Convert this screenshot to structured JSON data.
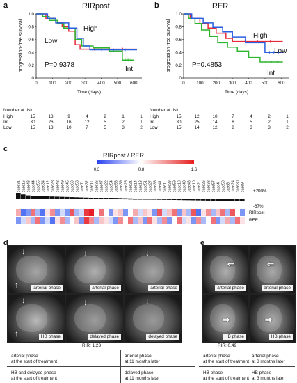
{
  "panels": {
    "a": {
      "label": "a",
      "title": "RIRpost"
    },
    "b": {
      "label": "b",
      "title": "RER"
    },
    "c": {
      "label": "c"
    },
    "d": {
      "label": "d"
    },
    "e": {
      "label": "e"
    }
  },
  "chart_data": [
    {
      "type": "line",
      "panel": "a",
      "title": "RIRpost",
      "xlabel": "Time (days)",
      "ylabel": "progression-free survival",
      "xlim": [
        0,
        650
      ],
      "ylim": [
        0,
        1.0
      ],
      "xticks": [
        "0",
        "100",
        "200",
        "300",
        "400",
        "500",
        "600"
      ],
      "yticks": [
        "0",
        "0.2",
        "0.4",
        "0.6",
        "0.8",
        "1.0"
      ],
      "pvalue": "P=0.9378",
      "series": [
        {
          "name": "High",
          "color": "#e8283a",
          "x": [
            0,
            60,
            60,
            120,
            120,
            160,
            160,
            200,
            200,
            240,
            240,
            270,
            270,
            620
          ],
          "y": [
            1.0,
            1.0,
            0.93,
            0.93,
            0.87,
            0.87,
            0.8,
            0.8,
            0.73,
            0.73,
            0.52,
            0.52,
            0.45,
            0.45
          ]
        },
        {
          "name": "Int",
          "color": "#2db52d",
          "x": [
            0,
            40,
            40,
            80,
            80,
            130,
            130,
            170,
            170,
            240,
            240,
            280,
            280,
            350,
            350,
            450,
            450,
            530,
            530,
            600
          ],
          "y": [
            1.0,
            1.0,
            0.96,
            0.96,
            0.9,
            0.9,
            0.85,
            0.85,
            0.78,
            0.78,
            0.6,
            0.6,
            0.5,
            0.5,
            0.47,
            0.47,
            0.42,
            0.42,
            0.28,
            0.28
          ]
        },
        {
          "name": "Low",
          "color": "#2a5fe0",
          "x": [
            0,
            70,
            70,
            120,
            120,
            200,
            200,
            250,
            250,
            290,
            290,
            330,
            330,
            620
          ],
          "y": [
            1.0,
            1.0,
            0.93,
            0.93,
            0.86,
            0.86,
            0.78,
            0.78,
            0.62,
            0.62,
            0.5,
            0.5,
            0.44,
            0.44
          ]
        }
      ],
      "annotations": [
        "High",
        "Low",
        "Int"
      ]
    },
    {
      "type": "line",
      "panel": "b",
      "title": "RER",
      "xlabel": "Time (days)",
      "ylabel": "progression-free survival",
      "xlim": [
        0,
        650
      ],
      "ylim": [
        0,
        1.0
      ],
      "xticks": [
        "0",
        "100",
        "200",
        "300",
        "400",
        "500",
        "600"
      ],
      "yticks": [
        "0",
        "0.2",
        "0.4",
        "0.6",
        "0.8",
        "1.0"
      ],
      "pvalue": "P=0.4853",
      "series": [
        {
          "name": "High",
          "color": "#e8283a",
          "x": [
            0,
            40,
            40,
            100,
            100,
            150,
            150,
            200,
            200,
            260,
            260,
            300,
            300,
            610
          ],
          "y": [
            1.0,
            1.0,
            0.93,
            0.93,
            0.85,
            0.85,
            0.78,
            0.78,
            0.7,
            0.7,
            0.62,
            0.62,
            0.57,
            0.57
          ]
        },
        {
          "name": "Int",
          "color": "#2db52d",
          "x": [
            0,
            30,
            30,
            70,
            70,
            110,
            110,
            160,
            160,
            210,
            210,
            270,
            270,
            330,
            330,
            400,
            400,
            470,
            470,
            610
          ],
          "y": [
            1.0,
            1.0,
            0.93,
            0.93,
            0.85,
            0.85,
            0.75,
            0.75,
            0.65,
            0.65,
            0.55,
            0.55,
            0.48,
            0.48,
            0.42,
            0.42,
            0.32,
            0.32,
            0.25,
            0.25
          ]
        },
        {
          "name": "Low",
          "color": "#2a5fe0",
          "x": [
            0,
            50,
            50,
            120,
            120,
            180,
            180,
            240,
            240,
            300,
            300,
            380,
            380,
            500,
            500,
            610
          ],
          "y": [
            1.0,
            1.0,
            0.93,
            0.93,
            0.86,
            0.86,
            0.79,
            0.79,
            0.72,
            0.72,
            0.64,
            0.64,
            0.55,
            0.55,
            0.4,
            0.4
          ]
        }
      ],
      "annotations": [
        "High",
        "Low",
        "Int"
      ]
    }
  ],
  "risk_tables": {
    "a": {
      "title": "Number at risk",
      "rows": [
        {
          "label": "High",
          "values": [
            "15",
            "13",
            "9",
            "4",
            "2",
            "1",
            "1"
          ]
        },
        {
          "label": "Int",
          "values": [
            "30",
            "26",
            "16",
            "12",
            "5",
            "2",
            "1"
          ]
        },
        {
          "label": "Low",
          "values": [
            "15",
            "13",
            "10",
            "7",
            "5",
            "3",
            "2"
          ]
        }
      ]
    },
    "b": {
      "title": "Number at risk",
      "rows": [
        {
          "label": "High",
          "values": [
            "15",
            "12",
            "10",
            "7",
            "4",
            "2",
            "1"
          ]
        },
        {
          "label": "Int",
          "values": [
            "30",
            "25",
            "14",
            "8",
            "5",
            "2",
            "1"
          ]
        },
        {
          "label": "Low",
          "values": [
            "15",
            "14",
            "12",
            "8",
            "3",
            "3",
            "2"
          ]
        }
      ]
    }
  },
  "heatmap": {
    "title": "RIRpost / RER",
    "scale_labels": [
      "0.3",
      "0.8",
      "1.6"
    ],
    "cases": [
      "case31",
      "case16",
      "case43",
      "case44",
      "case55",
      "case34",
      "case12",
      "case28",
      "case42",
      "case49",
      "case45",
      "case60",
      "case53",
      "case7",
      "case32",
      "case11",
      "case36",
      "case47",
      "case22",
      "case54",
      "case58",
      "case39",
      "case25",
      "case21",
      "case14",
      "case13",
      "case51",
      "case27",
      "case38",
      "case41",
      "case1",
      "case23",
      "case59",
      "case19",
      "case48",
      "case46",
      "case10",
      "case2",
      "case26",
      "case33",
      "case57",
      "case4",
      "case50",
      "case8",
      "case24",
      "case30",
      "case9"
    ],
    "bar_labels": [
      "+200%",
      "-67%"
    ],
    "row_labels": [
      "RIRpost",
      "RER"
    ],
    "rirpost": [
      1.1,
      0.4,
      0.5,
      1.3,
      0.6,
      0.4,
      0.9,
      1.2,
      0.5,
      0.7,
      0.5,
      1.4,
      0.6,
      0.7,
      1.5,
      1.6,
      0.8,
      1.3,
      0.8,
      0.5,
      0.9,
      1.0,
      0.5,
      0.8,
      1.1,
      0.7,
      1.0,
      0.9,
      0.5,
      1.4,
      0.7,
      1.0,
      1.3,
      0.5,
      1.0,
      0.6,
      1.4,
      0.4,
      0.9,
      1.2,
      0.6,
      1.0,
      1.3,
      0.6,
      1.4,
      0.8,
      0.5
    ],
    "rer": [
      0.5,
      0.7,
      1.0,
      0.6,
      1.3,
      0.5,
      0.7,
      0.4,
      0.9,
      1.2,
      0.6,
      0.8,
      1.0,
      0.5,
      1.5,
      1.2,
      0.6,
      1.0,
      0.9,
      0.7,
      0.5,
      1.2,
      0.8,
      1.3,
      0.6,
      1.0,
      0.5,
      1.3,
      0.9,
      0.6,
      1.2,
      0.5,
      0.8,
      1.3,
      0.7,
      0.9,
      0.5,
      1.2,
      0.6,
      0.8,
      1.3,
      0.5,
      0.7,
      1.1,
      0.6,
      1.3,
      0.9
    ],
    "bar_values": [
      200,
      150,
      120,
      110,
      100,
      95,
      90,
      85,
      80,
      75,
      70,
      65,
      60,
      55,
      50,
      45,
      40,
      35,
      30,
      25,
      20,
      15,
      10,
      5,
      0,
      -5,
      -8,
      -10,
      -12,
      -15,
      -18,
      -20,
      -22,
      -25,
      -28,
      -30,
      -33,
      -36,
      -40,
      -43,
      -46,
      -50,
      -54,
      -58,
      -62,
      -65,
      -67
    ]
  },
  "panel_d": {
    "phases": [
      "arterial phase",
      "arterial phase",
      "arterial phase",
      "HB phase",
      "delayed phase",
      "delayed phase"
    ],
    "rir": "RIR: 1.23",
    "captions": [
      "arterial phase\nat the start of treatment",
      "arterial phase\nat 11 months later",
      "HB and delayed phase\nat the start of treatment",
      "delayed phase\nat 11 months later"
    ]
  },
  "panel_e": {
    "phases": [
      "arterial phase",
      "arterial phase",
      "HB phase",
      "HB phase"
    ],
    "rir": "RIR: 0.49",
    "captions": [
      "arterial phase\nat the start of treatment",
      "arterial phase\nat 3 months later",
      "HB phase\nat the start of treatment",
      "HB phase\nat 3 months later"
    ]
  }
}
